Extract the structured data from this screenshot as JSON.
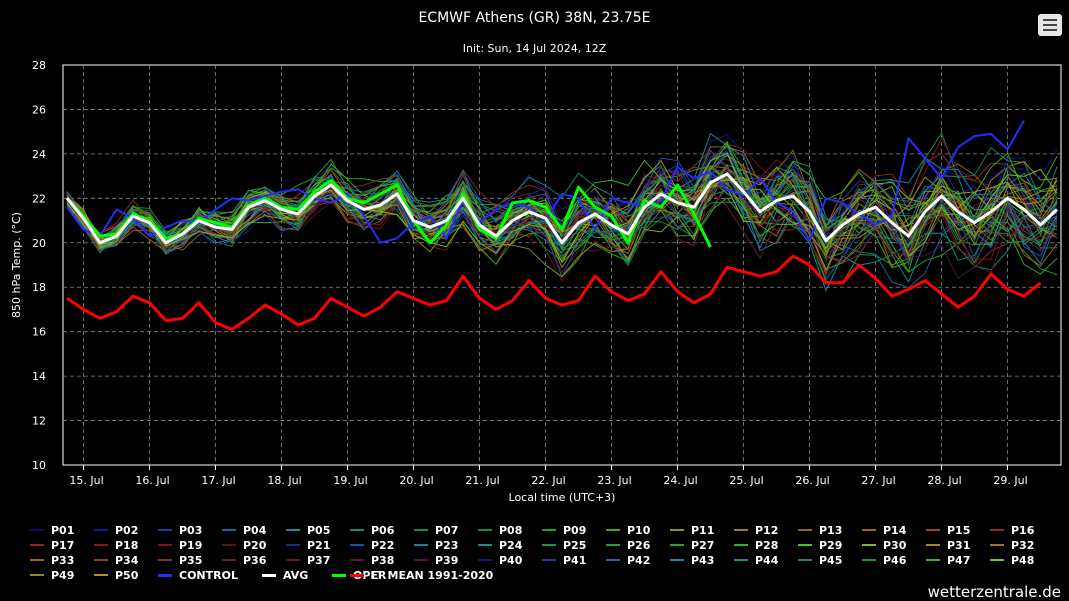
{
  "header": {
    "title": "ECMWF Athens (GR) 38N, 23.75E",
    "subtitle": "Init: Sun, 14 Jul 2024, 12Z",
    "menu_icon": "hamburger-menu-icon"
  },
  "brand": "wetterzentrale.de",
  "chart_data": {
    "type": "line",
    "title": "ECMWF Athens (GR) 38N, 23.75E",
    "subtitle": "Init: Sun, 14 Jul 2024, 12Z",
    "xlabel": "Local time (UTC+3)",
    "ylabel": "850 hPa Temp. (°C)",
    "ylim": [
      10,
      28
    ],
    "yticks": [
      10,
      12,
      14,
      16,
      18,
      20,
      22,
      24,
      26,
      28
    ],
    "xticks": [
      "15. Jul",
      "16. Jul",
      "17. Jul",
      "18. Jul",
      "19. Jul",
      "20. Jul",
      "21. Jul",
      "22. Jul",
      "23. Jul",
      "24. Jul",
      "25. Jul",
      "26. Jul",
      "27. Jul",
      "28. Jul",
      "29. Jul"
    ],
    "grid": true,
    "legend_position": "bottom",
    "series": [
      {
        "name": "CONTROL",
        "color": "#2a2aff",
        "values": [
          21.6,
          20.6,
          20.3,
          21.5,
          21.1,
          20.3,
          20.7,
          21.0,
          20.9,
          21.5,
          22.0,
          21.9,
          22.1,
          22.3,
          22.4,
          22.0,
          21.8,
          22.2,
          21.2,
          20.0,
          20.2,
          20.9,
          21.2,
          20.2,
          21.9,
          20.9,
          21.5,
          21.8,
          21.6,
          21.0,
          22.2,
          22.0,
          20.6,
          22.0,
          21.8,
          21.6,
          21.9,
          23.4,
          22.9,
          23.2,
          22.4,
          22.1,
          22.9,
          21.8,
          21.4,
          20.1,
          22.0,
          21.8,
          21.3,
          20.8,
          21.2,
          24.7,
          23.8,
          22.9,
          24.3,
          24.8,
          24.9,
          24.2,
          25.5
        ]
      },
      {
        "name": "AVG",
        "color": "#ffffff",
        "values": [
          22.0,
          21.1,
          20.0,
          20.3,
          21.2,
          20.9,
          20.0,
          20.4,
          21.0,
          20.7,
          20.6,
          21.6,
          21.9,
          21.5,
          21.3,
          22.1,
          22.6,
          21.9,
          21.5,
          21.7,
          22.2,
          21.0,
          20.7,
          21.0,
          22.0,
          20.8,
          20.3,
          21.0,
          21.4,
          21.1,
          20.0,
          20.9,
          21.3,
          20.8,
          20.4,
          21.6,
          22.2,
          21.8,
          21.6,
          22.7,
          23.1,
          22.3,
          21.4,
          21.9,
          22.1,
          21.4,
          20.1,
          20.8,
          21.3,
          21.6,
          20.9,
          20.3,
          21.4,
          22.1,
          21.4,
          20.9,
          21.4,
          22.0,
          21.5,
          20.8,
          21.5
        ]
      },
      {
        "name": "OPER",
        "color": "#00ff00",
        "values": [
          22.0,
          21.2,
          20.3,
          20.4,
          21.3,
          21.0,
          20.2,
          20.4,
          21.1,
          20.9,
          20.7,
          21.7,
          22.0,
          21.6,
          21.5,
          22.3,
          22.8,
          22.0,
          21.8,
          22.2,
          22.6,
          21.0,
          20.0,
          20.8,
          22.2,
          20.6,
          20.2,
          21.8,
          21.9,
          21.6,
          20.6,
          22.5,
          21.6,
          21.2,
          20.0,
          21.9,
          21.6,
          22.6,
          21.3,
          19.8
        ]
      },
      {
        "name": "LT MEAN 1991-2020",
        "color": "#ff0000",
        "values": [
          17.5,
          17.0,
          16.6,
          16.9,
          17.6,
          17.3,
          16.5,
          16.6,
          17.3,
          16.4,
          16.1,
          16.6,
          17.2,
          16.8,
          16.3,
          16.6,
          17.5,
          17.1,
          16.7,
          17.1,
          17.8,
          17.5,
          17.2,
          17.4,
          18.5,
          17.5,
          17.0,
          17.4,
          18.3,
          17.5,
          17.2,
          17.4,
          18.5,
          17.8,
          17.4,
          17.7,
          18.7,
          17.8,
          17.3,
          17.7,
          18.9,
          18.7,
          18.5,
          18.7,
          19.4,
          19.0,
          18.2,
          18.2,
          19.0,
          18.4,
          17.6,
          17.9,
          18.3,
          17.7,
          17.1,
          17.6,
          18.6,
          17.9,
          17.6,
          18.2
        ]
      }
    ],
    "ensemble_members": [
      {
        "name": "P01",
        "color": "#10106e"
      },
      {
        "name": "P02",
        "color": "#101b96"
      },
      {
        "name": "P03",
        "color": "#10409d"
      },
      {
        "name": "P04",
        "color": "#106aa0"
      },
      {
        "name": "P05",
        "color": "#1a8aa3"
      },
      {
        "name": "P06",
        "color": "#148a78"
      },
      {
        "name": "P07",
        "color": "#148a4f"
      },
      {
        "name": "P08",
        "color": "#168d32"
      },
      {
        "name": "P09",
        "color": "#1ea31c"
      },
      {
        "name": "P10",
        "color": "#3caa14"
      },
      {
        "name": "P11",
        "color": "#7a9c14"
      },
      {
        "name": "P12",
        "color": "#8c8a14"
      },
      {
        "name": "P13",
        "color": "#8c6a14"
      },
      {
        "name": "P14",
        "color": "#a56414"
      },
      {
        "name": "P15",
        "color": "#a04614"
      },
      {
        "name": "P16",
        "color": "#8c3214"
      },
      {
        "name": "P17",
        "color": "#8c2814"
      },
      {
        "name": "P18",
        "color": "#871a14"
      },
      {
        "name": "P19",
        "color": "#78141e"
      },
      {
        "name": "P20",
        "color": "#5a1414"
      },
      {
        "name": "P21",
        "color": "#1e2896"
      },
      {
        "name": "P22",
        "color": "#1e50b4"
      },
      {
        "name": "P23",
        "color": "#1e78b4"
      },
      {
        "name": "P24",
        "color": "#1e8c8c"
      },
      {
        "name": "P25",
        "color": "#1e8c64"
      },
      {
        "name": "P26",
        "color": "#1ea03c"
      },
      {
        "name": "P27",
        "color": "#28a032"
      },
      {
        "name": "P28",
        "color": "#32b41e"
      },
      {
        "name": "P29",
        "color": "#46c81e"
      },
      {
        "name": "P30",
        "color": "#8cb41e"
      },
      {
        "name": "P31",
        "color": "#a08c1e"
      },
      {
        "name": "P32",
        "color": "#a0781e"
      },
      {
        "name": "P33",
        "color": "#a0641e"
      },
      {
        "name": "P34",
        "color": "#8c461e"
      },
      {
        "name": "P35",
        "color": "#823228"
      },
      {
        "name": "P36",
        "color": "#6e1e28"
      },
      {
        "name": "P37",
        "color": "#78141e"
      },
      {
        "name": "P38",
        "color": "#641428"
      },
      {
        "name": "P39",
        "color": "#501446"
      },
      {
        "name": "P40",
        "color": "#14147d"
      },
      {
        "name": "P41",
        "color": "#1e3ca0"
      },
      {
        "name": "P42",
        "color": "#1e64aa"
      },
      {
        "name": "P43",
        "color": "#1e82aa"
      },
      {
        "name": "P44",
        "color": "#1e8c82"
      },
      {
        "name": "P45",
        "color": "#1e8c50"
      },
      {
        "name": "P46",
        "color": "#1e9628"
      },
      {
        "name": "P47",
        "color": "#3cb41e"
      },
      {
        "name": "P48",
        "color": "#78c31e"
      },
      {
        "name": "P49",
        "color": "#8c8c1e"
      },
      {
        "name": "P50",
        "color": "#aa961e"
      }
    ]
  }
}
